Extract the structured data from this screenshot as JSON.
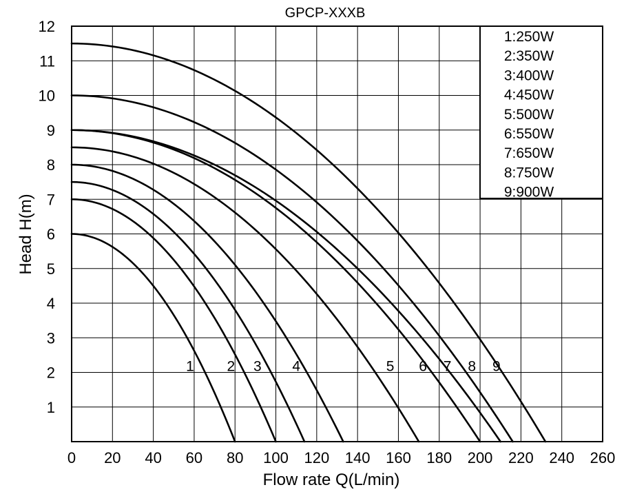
{
  "chart_data": {
    "type": "line",
    "title": "GPCP-XXXB",
    "xlabel": "Flow rate Q(L/min)",
    "ylabel": "Head H(m)",
    "xlim": [
      0,
      260
    ],
    "ylim": [
      0,
      12
    ],
    "x_ticks": [
      "0",
      "20",
      "40",
      "60",
      "80",
      "100",
      "120",
      "140",
      "160",
      "180",
      "200",
      "220",
      "240",
      "260"
    ],
    "y_ticks": [
      "1",
      "2",
      "3",
      "4",
      "5",
      "6",
      "7",
      "8",
      "9",
      "10",
      "11",
      "12"
    ],
    "grid": true,
    "legend_position": "top-right",
    "legend": [
      "1:250W",
      "2:350W",
      "3:400W",
      "4:450W",
      "5:500W",
      "6:550W",
      "7:650W",
      "8:750W",
      "9:900W"
    ],
    "series": [
      {
        "name": "1",
        "h0": 6.0,
        "q0": 80,
        "label_x": 58,
        "label_y": 2.2
      },
      {
        "name": "2",
        "h0": 7.0,
        "q0": 100,
        "label_x": 78,
        "label_y": 2.2
      },
      {
        "name": "3",
        "h0": 7.5,
        "q0": 114,
        "label_x": 91,
        "label_y": 2.2
      },
      {
        "name": "4",
        "h0": 8.0,
        "q0": 133,
        "label_x": 110,
        "label_y": 2.2
      },
      {
        "name": "5",
        "h0": 8.5,
        "q0": 170,
        "label_x": 156,
        "label_y": 2.2
      },
      {
        "name": "6",
        "h0": 9.0,
        "q0": 200,
        "label_x": 172,
        "label_y": 2.2
      },
      {
        "name": "7",
        "h0": 9.0,
        "q0": 210,
        "label_x": 184,
        "label_y": 2.2
      },
      {
        "name": "8",
        "h0": 10.0,
        "q0": 216,
        "label_x": 196,
        "label_y": 2.2
      },
      {
        "name": "9",
        "h0": 11.5,
        "q0": 232,
        "label_x": 208,
        "label_y": 2.2
      }
    ]
  }
}
